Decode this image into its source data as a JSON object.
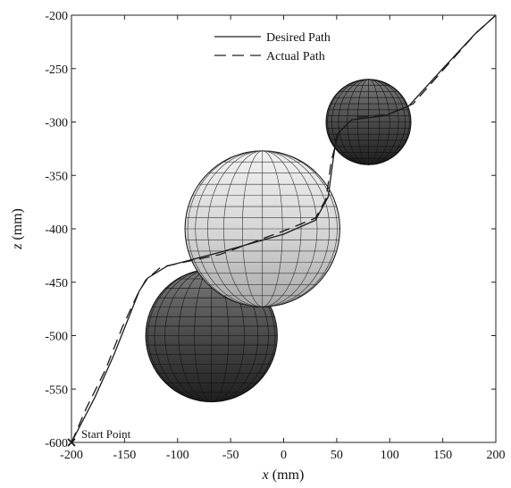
{
  "chart_data": {
    "type": "line",
    "xlabel": "x (mm)",
    "ylabel": "z (mm)",
    "xlabel_var": "x",
    "xlabel_unit": " (mm)",
    "ylabel_var": "z",
    "ylabel_unit": " (mm)",
    "xlim": [
      -200,
      200
    ],
    "ylim": [
      -600,
      -200
    ],
    "xticks": [
      -200,
      -150,
      -100,
      -50,
      0,
      50,
      100,
      150,
      200
    ],
    "yticks": [
      -200,
      -250,
      -300,
      -350,
      -400,
      -450,
      -500,
      -550,
      -600
    ],
    "grid": false,
    "legend_position": "top-center",
    "series": [
      {
        "name": "Desired Path",
        "style": "solid",
        "x": [
          -200,
          -178,
          -160,
          -146,
          -136,
          -128,
          -110,
          -60,
          0,
          30,
          42,
          46,
          50,
          64,
          96,
          118,
          150,
          180,
          200
        ],
        "y": [
          -600,
          -558,
          -518,
          -483,
          -458,
          -446,
          -435,
          -422,
          -405,
          -392,
          -370,
          -340,
          -312,
          -298,
          -294,
          -285,
          -250,
          -218,
          -200
        ]
      },
      {
        "name": "Actual Path",
        "style": "dashed",
        "x": [
          -200,
          -186,
          -168,
          -152,
          -138,
          -130,
          -116,
          -60,
          0,
          30,
          40,
          45,
          52,
          66,
          98,
          122,
          155,
          182,
          200
        ],
        "y": [
          -600,
          -568,
          -532,
          -492,
          -462,
          -448,
          -436,
          -424,
          -402,
          -390,
          -372,
          -336,
          -310,
          -296,
          -293,
          -283,
          -246,
          -216,
          -200
        ]
      }
    ],
    "obstacles": [
      {
        "cx": -68,
        "cz": -500,
        "r": 62,
        "shade": "dark"
      },
      {
        "cx": -20,
        "cz": -400,
        "r": 73,
        "shade": "light"
      },
      {
        "cx": 80,
        "cz": -300,
        "r": 40,
        "shade": "dark"
      }
    ],
    "annotations": [
      {
        "text": "Start Point",
        "x": -200,
        "y": -600,
        "marker": "x"
      }
    ]
  }
}
